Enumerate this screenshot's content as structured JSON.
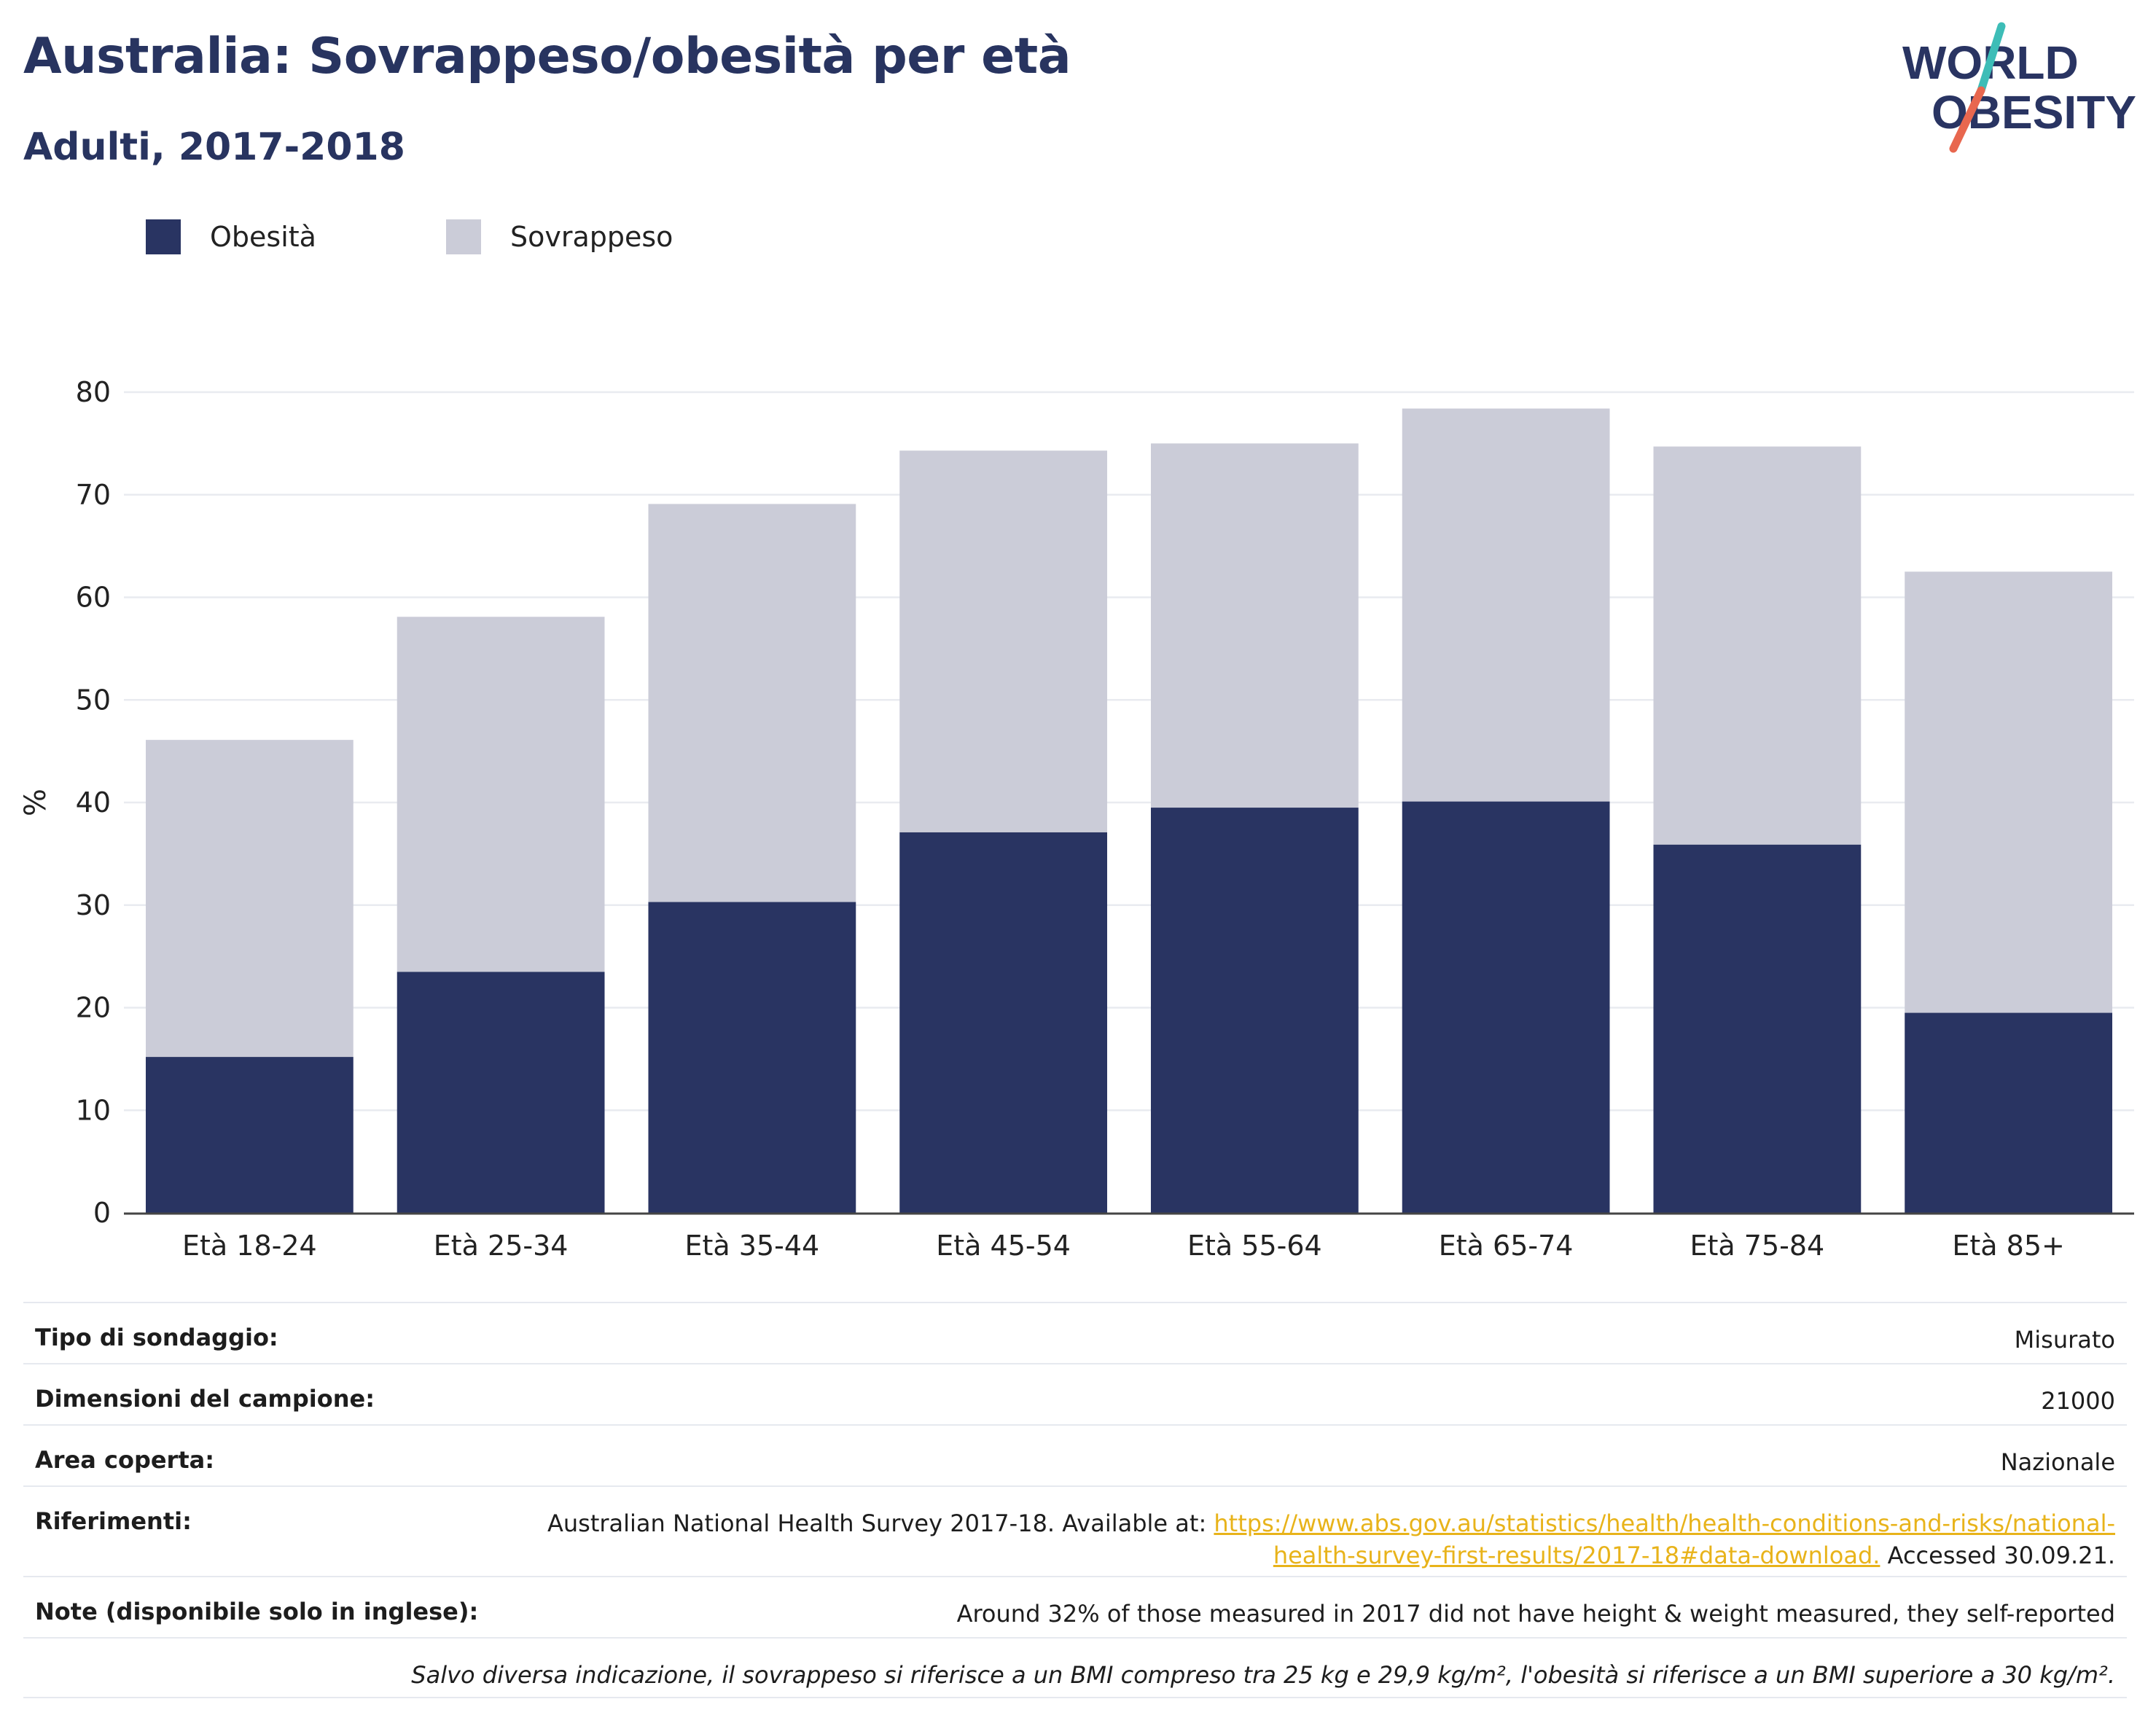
{
  "header": {
    "title": "Australia: Sovrappeso/obesità per età",
    "subtitle": "Adulti, 2017-2018"
  },
  "logo": {
    "line1": "WORLD",
    "line2": "OBESITY",
    "accent_teal": "#3dbdb7",
    "accent_red": "#e8674f"
  },
  "colors": {
    "obesity": "#293462",
    "overweight": "#cbccd8",
    "link": "#e8b31a"
  },
  "chart_data": {
    "type": "bar",
    "stacked": true,
    "categories": [
      "Età 18-24",
      "Età 25-34",
      "Età 35-44",
      "Età 45-54",
      "Età 55-64",
      "Età 65-74",
      "Età 75-84",
      "Età 85+"
    ],
    "series": [
      {
        "name": "Obesità",
        "values": [
          15.2,
          23.5,
          30.3,
          37.1,
          39.5,
          40.1,
          35.9,
          19.5
        ]
      },
      {
        "name": "Sovrappeso",
        "values": [
          30.9,
          34.6,
          38.8,
          37.2,
          35.5,
          38.3,
          38.8,
          43.0
        ]
      }
    ],
    "ylabel": "%",
    "xlabel": "",
    "ylim": [
      0,
      80
    ],
    "yticks": [
      0,
      10,
      20,
      30,
      40,
      50,
      60,
      70,
      80
    ],
    "grid": true,
    "legend_position": "top-left"
  },
  "info": {
    "survey_type": {
      "label": "Tipo di sondaggio:",
      "value": "Misurato"
    },
    "sample_size": {
      "label": "Dimensioni del campione:",
      "value": "21000"
    },
    "area": {
      "label": "Area coperta:",
      "value": "Nazionale"
    },
    "references": {
      "label": "Riferimenti:",
      "text_before": "Australian National Health Survey 2017-18. Available at: ",
      "link_line1": "https://www.abs.gov.au/statistics/health/health-conditions-and-risks/national-",
      "link_line2": "health-survey-first-results/2017-18#data-download.",
      "text_after": " Accessed 30.09.21."
    },
    "notes": {
      "label": "Note (disponibile solo in inglese):",
      "value": "Around 32% of those measured in 2017 did not have height & weight measured, they self-reported"
    },
    "footnote": "Salvo diversa indicazione, il sovrappeso si riferisce a un BMI compreso tra 25 kg e 29,9 kg/m², l'obesità si riferisce a un BMI superiore a 30 kg/m²."
  }
}
